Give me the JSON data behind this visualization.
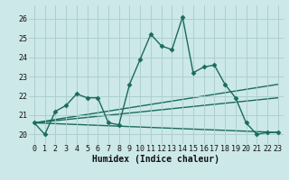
{
  "title": "",
  "xlabel": "Humidex (Indice chaleur)",
  "background_color": "#cce8e8",
  "grid_color": "#aacccc",
  "line_color": "#1a6b5a",
  "xlim": [
    -0.5,
    23.5
  ],
  "ylim": [
    19.5,
    26.7
  ],
  "yticks": [
    20,
    21,
    22,
    23,
    24,
    25,
    26
  ],
  "xticks": [
    0,
    1,
    2,
    3,
    4,
    5,
    6,
    7,
    8,
    9,
    10,
    11,
    12,
    13,
    14,
    15,
    16,
    17,
    18,
    19,
    20,
    21,
    22,
    23
  ],
  "main_series": {
    "x": [
      0,
      1,
      2,
      3,
      4,
      5,
      6,
      7,
      8,
      9,
      10,
      11,
      12,
      13,
      14,
      15,
      16,
      17,
      18,
      19,
      20,
      21,
      22,
      23
    ],
    "y": [
      20.6,
      20.0,
      21.2,
      21.5,
      22.1,
      21.9,
      21.9,
      20.6,
      20.5,
      22.6,
      23.9,
      25.2,
      24.6,
      24.4,
      26.1,
      23.2,
      23.5,
      23.6,
      22.6,
      21.9,
      20.6,
      20.0,
      20.1,
      20.1
    ]
  },
  "straight_lines": [
    {
      "x": [
        0,
        23
      ],
      "y": [
        20.6,
        20.1
      ]
    },
    {
      "x": [
        0,
        23
      ],
      "y": [
        20.6,
        21.9
      ]
    },
    {
      "x": [
        0,
        23
      ],
      "y": [
        20.6,
        22.6
      ]
    }
  ],
  "tick_fontsize": 6,
  "xlabel_fontsize": 7,
  "marker": "D",
  "markersize": 2.5,
  "linewidth": 1.0
}
